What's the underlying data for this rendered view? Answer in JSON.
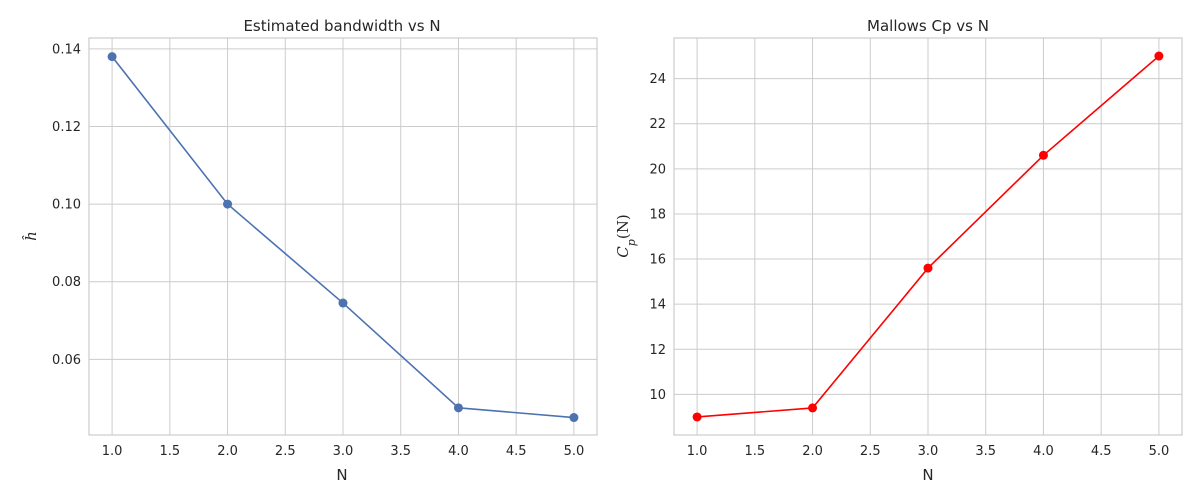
{
  "chart_data": [
    {
      "type": "line",
      "title": "Estimated bandwidth vs N",
      "xlabel": "N",
      "ylabel": "ĥ",
      "xlim": [
        0.8,
        5.2
      ],
      "ylim": [
        0.0405,
        0.1428
      ],
      "xticks": [
        1.0,
        1.5,
        2.0,
        2.5,
        3.0,
        3.5,
        4.0,
        4.5,
        5.0
      ],
      "xtick_labels": [
        "1.0",
        "1.5",
        "2.0",
        "2.5",
        "3.0",
        "3.5",
        "4.0",
        "4.5",
        "5.0"
      ],
      "yticks": [
        0.06,
        0.08,
        0.1,
        0.12,
        0.14
      ],
      "ytick_labels": [
        "0.06",
        "0.08",
        "0.10",
        "0.12",
        "0.14"
      ],
      "grid": true,
      "color": "#4c72b0",
      "x": [
        1.0,
        2.0,
        3.0,
        4.0,
        5.0
      ],
      "y": [
        0.138,
        0.1,
        0.0745,
        0.0475,
        0.045
      ]
    },
    {
      "type": "line",
      "title": "Mallows Cp vs N",
      "xlabel": "N",
      "ylabel_base": "C",
      "ylabel_sub": "p",
      "ylabel_tail": "(N)",
      "xlim": [
        0.8,
        5.2
      ],
      "ylim": [
        8.2,
        25.8
      ],
      "xticks": [
        1.0,
        1.5,
        2.0,
        2.5,
        3.0,
        3.5,
        4.0,
        4.5,
        5.0
      ],
      "xtick_labels": [
        "1.0",
        "1.5",
        "2.0",
        "2.5",
        "3.0",
        "3.5",
        "4.0",
        "4.5",
        "5.0"
      ],
      "yticks": [
        10,
        12,
        14,
        16,
        18,
        20,
        22,
        24
      ],
      "ytick_labels": [
        "10",
        "12",
        "14",
        "16",
        "18",
        "20",
        "22",
        "24"
      ],
      "grid": true,
      "color": "#ff0000",
      "x": [
        1.0,
        2.0,
        3.0,
        4.0,
        5.0
      ],
      "y": [
        9.0,
        9.4,
        15.6,
        20.6,
        25.0
      ]
    }
  ]
}
